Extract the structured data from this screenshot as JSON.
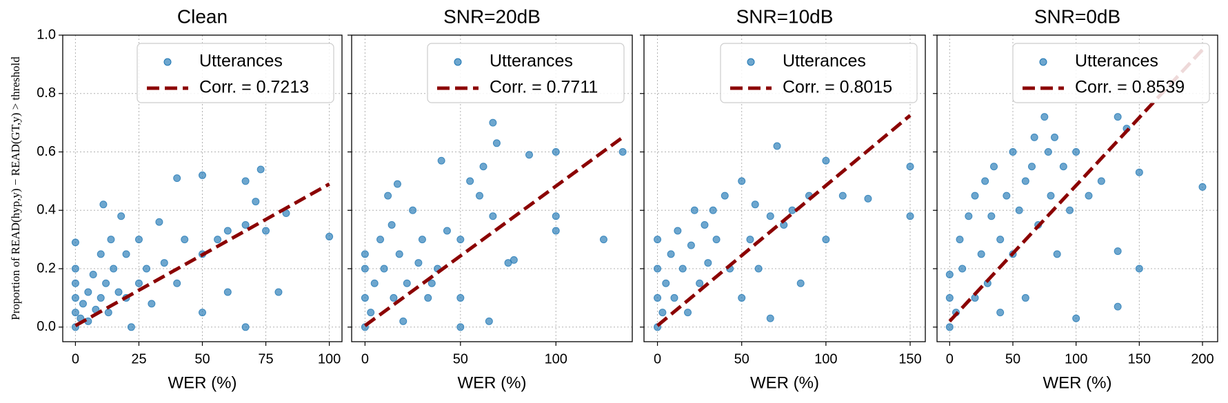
{
  "chart_data": [
    {
      "type": "scatter",
      "title": "Clean",
      "xlabel": "WER (%)",
      "ylabel": "Proportion of READ(hyp,y) − READ(GT,y) > threshold",
      "xlim": [
        -5,
        105
      ],
      "xticks": [
        0,
        25,
        50,
        75,
        100
      ],
      "ylim": [
        -0.05,
        1.0
      ],
      "yticks": [
        {
          "value": 0,
          "label": "0.0"
        },
        0.2,
        0.4,
        0.6,
        0.8,
        {
          "value": 1,
          "label": "1.0"
        }
      ],
      "grid": true,
      "legend": "upper right",
      "series": [
        {
          "name": "Utterances",
          "color": "#1f77b4",
          "type": "scatter",
          "x": [
            0,
            0,
            0,
            0,
            0,
            0,
            2,
            3,
            5,
            5,
            7,
            8,
            10,
            10,
            11,
            12,
            13,
            14,
            15,
            17,
            18,
            20,
            20,
            22,
            25,
            25,
            28,
            30,
            33,
            35,
            40,
            40,
            43,
            50,
            50,
            50,
            56,
            60,
            60,
            67,
            67,
            67,
            71,
            73,
            75,
            80,
            83,
            100
          ],
          "values": [
            0,
            0.05,
            0.1,
            0.15,
            0.2,
            0.29,
            0.03,
            0.08,
            0.12,
            0.02,
            0.18,
            0.06,
            0.1,
            0.25,
            0.42,
            0.15,
            0.05,
            0.3,
            0.2,
            0.12,
            0.38,
            0.1,
            0.25,
            0,
            0.15,
            0.3,
            0.2,
            0.08,
            0.36,
            0.22,
            0.51,
            0.15,
            0.3,
            0.52,
            0.05,
            0.25,
            0.3,
            0.33,
            0.12,
            0.5,
            0,
            0.35,
            0.43,
            0.54,
            0.33,
            0.12,
            0.39,
            0.31
          ]
        },
        {
          "name": "Corr. = 0.7213",
          "color": "#8b0000",
          "type": "line",
          "style": "dashed",
          "x": [
            0,
            100
          ],
          "values": [
            0.005,
            0.49
          ]
        }
      ]
    },
    {
      "type": "scatter",
      "title": "SNR=20dB",
      "xlabel": "WER (%)",
      "xlim": [
        -7,
        140
      ],
      "xticks": [
        0,
        50,
        100
      ],
      "ylim": [
        -0.05,
        1.0
      ],
      "yticks": [
        0,
        0.2,
        0.4,
        0.6,
        0.8,
        1
      ],
      "grid": true,
      "legend": "upper right",
      "series": [
        {
          "name": "Utterances",
          "color": "#1f77b4",
          "type": "scatter",
          "x": [
            0,
            0,
            0,
            0,
            3,
            5,
            8,
            10,
            12,
            14,
            15,
            17,
            18,
            20,
            22,
            25,
            28,
            30,
            33,
            35,
            38,
            40,
            43,
            50,
            50,
            50,
            55,
            60,
            62,
            65,
            67,
            67,
            69,
            75,
            78,
            86,
            100,
            100,
            100,
            125,
            135
          ],
          "values": [
            0,
            0.1,
            0.2,
            0.25,
            0.05,
            0.15,
            0.3,
            0.2,
            0.45,
            0.35,
            0.1,
            0.49,
            0.25,
            0.02,
            0.15,
            0.4,
            0.22,
            0.3,
            0.1,
            0.15,
            0.2,
            0.57,
            0.33,
            0.3,
            0,
            0.1,
            0.5,
            0.45,
            0.55,
            0.02,
            0.7,
            0.38,
            0.63,
            0.22,
            0.23,
            0.59,
            0.6,
            0.38,
            0.33,
            0.3,
            0.6
          ]
        },
        {
          "name": "Corr. = 0.7711",
          "color": "#8b0000",
          "type": "line",
          "style": "dashed",
          "x": [
            0,
            135
          ],
          "values": [
            0.005,
            0.65
          ]
        }
      ]
    },
    {
      "type": "scatter",
      "title": "SNR=10dB",
      "xlabel": "WER (%)",
      "xlim": [
        -8,
        159
      ],
      "xticks": [
        0,
        50,
        100,
        150
      ],
      "ylim": [
        -0.05,
        1.0
      ],
      "yticks": [
        0,
        0.2,
        0.4,
        0.6,
        0.8,
        1
      ],
      "grid": true,
      "legend": "upper right",
      "series": [
        {
          "name": "Utterances",
          "color": "#1f77b4",
          "type": "scatter",
          "x": [
            0,
            0,
            0,
            0,
            3,
            5,
            8,
            10,
            12,
            15,
            18,
            20,
            22,
            25,
            28,
            30,
            33,
            35,
            40,
            43,
            50,
            50,
            55,
            58,
            60,
            67,
            67,
            71,
            75,
            80,
            85,
            90,
            100,
            100,
            110,
            125,
            150,
            150
          ],
          "values": [
            0,
            0.1,
            0.2,
            0.3,
            0.05,
            0.15,
            0.25,
            0.1,
            0.33,
            0.2,
            0.05,
            0.28,
            0.4,
            0.15,
            0.35,
            0.22,
            0.4,
            0.3,
            0.45,
            0.2,
            0.5,
            0.1,
            0.3,
            0.42,
            0.2,
            0.03,
            0.38,
            0.62,
            0.35,
            0.4,
            0.15,
            0.45,
            0.57,
            0.3,
            0.45,
            0.44,
            0.55,
            0.38
          ]
        },
        {
          "name": "Corr. = 0.8015",
          "color": "#8b0000",
          "type": "line",
          "style": "dashed",
          "x": [
            0,
            150
          ],
          "values": [
            0.005,
            0.725
          ]
        }
      ]
    },
    {
      "type": "scatter",
      "title": "SNR=0dB",
      "xlabel": "WER (%)",
      "xlim": [
        -10,
        212
      ],
      "xticks": [
        0,
        50,
        100,
        150,
        200
      ],
      "ylim": [
        -0.05,
        1.0
      ],
      "yticks": [
        0,
        0.2,
        0.4,
        0.6,
        0.8,
        1
      ],
      "grid": true,
      "legend": "upper right",
      "series": [
        {
          "name": "Utterances",
          "color": "#1f77b4",
          "type": "scatter",
          "x": [
            0,
            0,
            0,
            5,
            8,
            10,
            15,
            20,
            20,
            25,
            28,
            30,
            33,
            35,
            40,
            40,
            45,
            50,
            50,
            55,
            60,
            60,
            65,
            67,
            70,
            75,
            78,
            80,
            83,
            85,
            90,
            95,
            100,
            100,
            110,
            120,
            133,
            133,
            133,
            140,
            150,
            150,
            200
          ],
          "values": [
            0,
            0.1,
            0.18,
            0.05,
            0.3,
            0.2,
            0.38,
            0.1,
            0.45,
            0.25,
            0.5,
            0.15,
            0.38,
            0.55,
            0.3,
            0.05,
            0.45,
            0.6,
            0.25,
            0.4,
            0.5,
            0.1,
            0.55,
            0.65,
            0.35,
            0.72,
            0.6,
            0.45,
            0.65,
            0.25,
            0.55,
            0.4,
            0.6,
            0.03,
            0.45,
            0.5,
            0.72,
            0.26,
            0.07,
            0.68,
            0.53,
            0.2,
            0.48
          ]
        },
        {
          "name": "Corr. = 0.8539",
          "color": "#8b0000",
          "type": "line",
          "style": "dashed",
          "x": [
            0,
            200
          ],
          "values": [
            0.02,
            0.95
          ]
        }
      ]
    }
  ]
}
